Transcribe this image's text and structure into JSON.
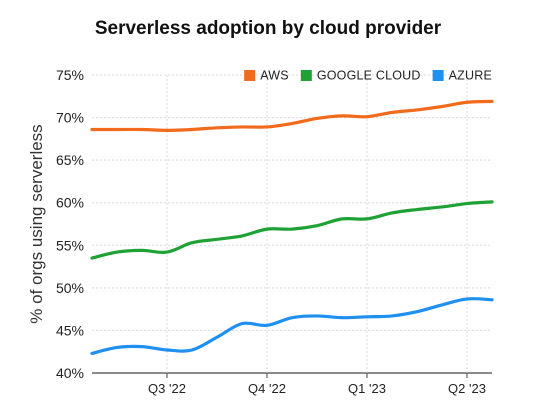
{
  "chart_data": {
    "type": "line",
    "title": "Serverless adoption by cloud provider",
    "xlabel": "",
    "ylabel": "% of orgs using serverless",
    "ylim": [
      40,
      75
    ],
    "y_ticks": [
      "40%",
      "45%",
      "50%",
      "55%",
      "60%",
      "65%",
      "70%",
      "75%"
    ],
    "x_ticks": [
      "Q3 '22",
      "Q4 '22",
      "Q1 '23",
      "Q2 '23"
    ],
    "x_tick_positions": [
      1.5,
      3.5,
      5.5,
      7.5
    ],
    "xlim": [
      0,
      8
    ],
    "grid": "y",
    "legend_position": "top-right",
    "x": [
      0,
      0.5,
      1,
      1.5,
      2,
      2.5,
      3,
      3.5,
      4,
      4.5,
      5,
      5.5,
      6,
      6.5,
      7,
      7.5,
      8
    ],
    "series": [
      {
        "name": "AWS",
        "color": "#f26a1b",
        "values": [
          68.6,
          68.6,
          68.6,
          68.5,
          68.6,
          68.8,
          68.9,
          68.9,
          69.3,
          69.9,
          70.2,
          70.1,
          70.6,
          70.9,
          71.3,
          71.8,
          71.9
        ]
      },
      {
        "name": "GOOGLE CLOUD",
        "color": "#1fa235",
        "values": [
          53.5,
          54.2,
          54.4,
          54.2,
          55.3,
          55.7,
          56.1,
          56.9,
          56.9,
          57.3,
          58.1,
          58.1,
          58.8,
          59.2,
          59.5,
          59.9,
          60.1
        ]
      },
      {
        "name": "AZURE",
        "color": "#1f8ff0",
        "values": [
          42.3,
          43.0,
          43.1,
          42.7,
          42.7,
          44.2,
          45.8,
          45.6,
          46.5,
          46.7,
          46.5,
          46.6,
          46.7,
          47.2,
          48.0,
          48.7,
          48.6
        ]
      }
    ]
  }
}
